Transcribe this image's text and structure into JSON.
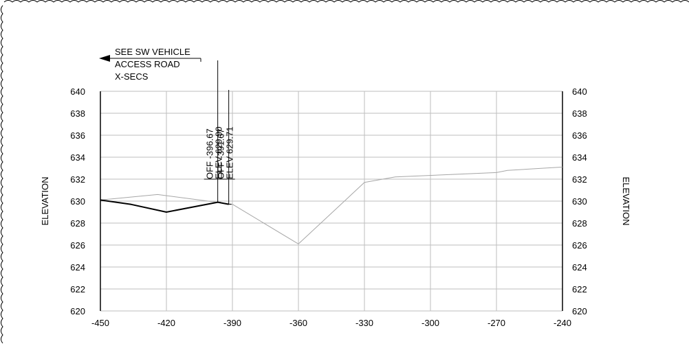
{
  "chart_data": {
    "type": "line",
    "xlim": [
      -450,
      -240
    ],
    "ylim": [
      620,
      640
    ],
    "x_ticks": [
      -450,
      -420,
      -390,
      -360,
      -330,
      -300,
      -270,
      -240
    ],
    "y_ticks": [
      620,
      622,
      624,
      626,
      628,
      630,
      632,
      634,
      636,
      638,
      640
    ],
    "ylabel_left": "ELEVATION",
    "ylabel_right": "ELEVATION",
    "grid": true,
    "series": [
      {
        "style": "thin-gray",
        "color": "#a6a6a6",
        "points": [
          [
            -450,
            630.1
          ],
          [
            -424,
            630.6
          ],
          [
            -390,
            629.71
          ],
          [
            -360,
            626.1
          ],
          [
            -330,
            631.7
          ],
          [
            -316,
            632.2
          ],
          [
            -270,
            632.6
          ],
          [
            -265,
            632.8
          ],
          [
            -240,
            633.1
          ]
        ]
      },
      {
        "style": "thick-black",
        "color": "#000000",
        "points": [
          [
            -450,
            630.1
          ],
          [
            -436,
            629.7
          ],
          [
            -420,
            629.0
          ],
          [
            -396.67,
            629.9
          ],
          [
            -391.67,
            629.71
          ]
        ]
      }
    ],
    "annotations": {
      "arrow_note": [
        "SEE SW VEHICLE",
        "ACCESS ROAD",
        "X-SECS"
      ],
      "markers": [
        {
          "x": -396.67,
          "lines": [
            "OFF -396.67",
            "ELEV 629.90"
          ]
        },
        {
          "x": -391.67,
          "lines": [
            "OFF -391.67",
            "ELEV 629.71"
          ]
        }
      ]
    }
  }
}
